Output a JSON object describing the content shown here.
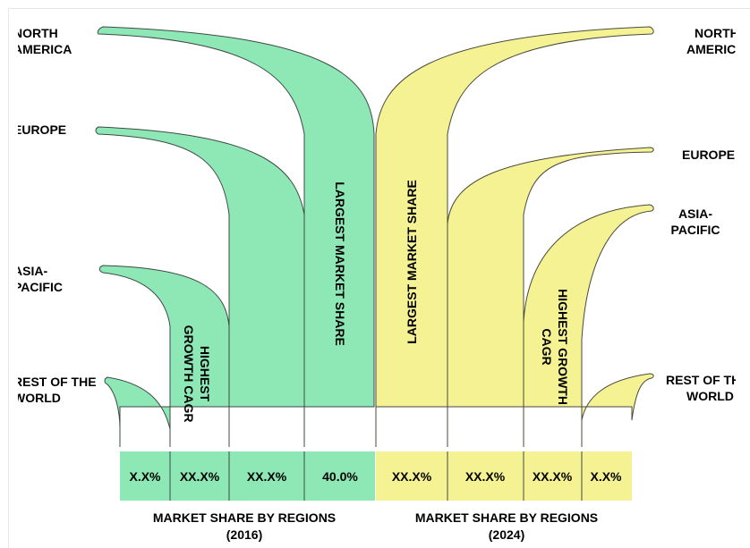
{
  "left": {
    "regions": [
      {
        "label_lines": [
          "NORTH",
          "AMERICA"
        ]
      },
      {
        "label_lines": [
          "EUROPE"
        ]
      },
      {
        "label_lines": [
          "ASIA-",
          "PACIFIC"
        ]
      },
      {
        "label_lines": [
          "REST OF THE",
          "WORLD"
        ]
      }
    ],
    "callouts": [
      {
        "lines": [
          "HIGHEST",
          "GROWTH CAGR"
        ]
      },
      {
        "lines": [
          "LARGEST MARKET SHARE"
        ]
      }
    ],
    "values": [
      "X.X%",
      "XX.X%",
      "XX.X%",
      "40.0%"
    ],
    "caption_lines": [
      "MARKET SHARE BY REGIONS",
      "(2016)"
    ],
    "color": "#8de8b6"
  },
  "right": {
    "regions": [
      {
        "label_lines": [
          "NORTH",
          "AMERICA"
        ]
      },
      {
        "label_lines": [
          "EUROPE"
        ]
      },
      {
        "label_lines": [
          "ASIA-",
          "PACIFIC"
        ]
      },
      {
        "label_lines": [
          "REST OF THE",
          "WORLD"
        ]
      }
    ],
    "callouts": [
      {
        "lines": [
          "LARGEST MARKET SHARE"
        ]
      },
      {
        "lines": [
          "HIGHEST GROWTH",
          "CAGR"
        ]
      }
    ],
    "values": [
      "XX.X%",
      "XX.X%",
      "XX.X%",
      "X.X%"
    ],
    "caption_lines": [
      "MARKET SHARE BY REGIONS",
      "(2024)"
    ],
    "color": "#f5f294"
  }
}
